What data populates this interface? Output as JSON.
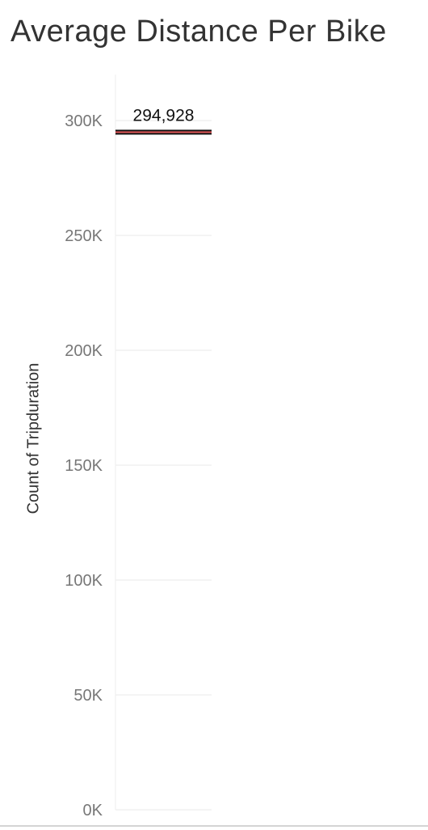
{
  "chart_data": {
    "type": "bar",
    "title": "Average Distance Per Bike",
    "ylabel": "Count of Tripduration",
    "xlabel": "",
    "categories": [
      ""
    ],
    "values": [
      294928
    ],
    "data_labels": [
      "294,928"
    ],
    "ylim": [
      0,
      320000
    ],
    "y_ticks": [
      0,
      50000,
      100000,
      150000,
      200000,
      250000,
      300000
    ],
    "y_tick_labels": [
      "0K",
      "50K",
      "100K",
      "150K",
      "200K",
      "250K",
      "300K"
    ],
    "grid": true,
    "legend": "none",
    "colors": {
      "mark": "#111111",
      "mark_accent": "#e15759",
      "grid": "#eeeeee",
      "axis_line": "#eeeeee"
    }
  }
}
